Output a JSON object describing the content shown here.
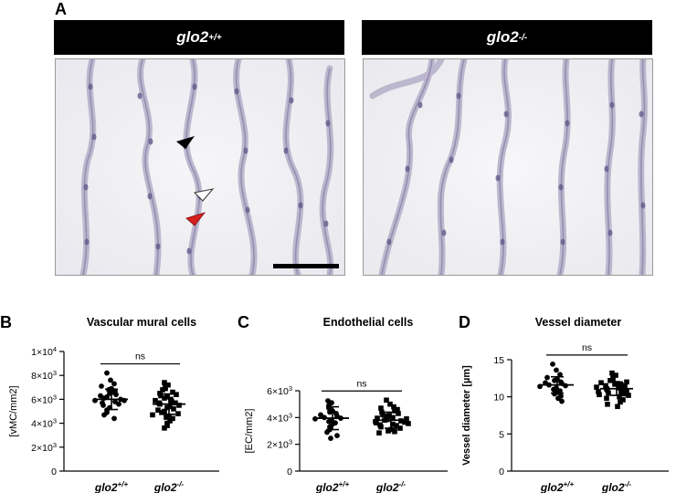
{
  "panel_a": {
    "letter": "A",
    "left_header": {
      "gene": "glo2",
      "sup": "+/+"
    },
    "right_header": {
      "gene": "glo2",
      "sup": "-/-"
    }
  },
  "chart_data": [
    {
      "panel": "B",
      "type": "scatter",
      "title": "Vascular mural cells",
      "ylabel": "[vMC/mm2]",
      "ylim": [
        0,
        10000
      ],
      "yticks": [
        0,
        2000,
        4000,
        6000,
        8000,
        10000
      ],
      "ytick_labels": [
        {
          "m": "",
          "e": "",
          "plain": "0"
        },
        {
          "m": "2×10",
          "e": "3"
        },
        {
          "m": "4×10",
          "e": "3"
        },
        {
          "m": "6×10",
          "e": "3"
        },
        {
          "m": "8×10",
          "e": "3"
        },
        {
          "m": "1×10",
          "e": "4"
        }
      ],
      "categories": [
        {
          "gene": "glo2",
          "sup": "+/+"
        },
        {
          "gene": "glo2",
          "sup": "-/-"
        }
      ],
      "significance": "ns",
      "groups": [
        {
          "marker": "circle",
          "mean": 6000,
          "sd": 850,
          "values": [
            8200,
            7600,
            7300,
            7100,
            6900,
            6800,
            6700,
            6600,
            6500,
            6400,
            6300,
            6200,
            6100,
            6000,
            5900,
            5900,
            5800,
            5700,
            5600,
            5500,
            5300,
            5100,
            4900,
            4700,
            4400
          ]
        },
        {
          "marker": "square",
          "mean": 5600,
          "sd": 850,
          "values": [
            7400,
            7200,
            7000,
            6900,
            6800,
            6600,
            6500,
            6400,
            6300,
            6200,
            6100,
            6000,
            5900,
            5800,
            5700,
            5700,
            5600,
            5500,
            5400,
            5300,
            5200,
            5100,
            5000,
            4900,
            4800,
            4700,
            4600,
            4500,
            4400,
            4200,
            4000,
            3800,
            3600
          ]
        }
      ]
    },
    {
      "panel": "C",
      "type": "scatter",
      "title": "Endothelial cells",
      "ylabel": "[EC/mm2]",
      "ylim": [
        0,
        6000
      ],
      "yticks": [
        0,
        2000,
        4000,
        6000
      ],
      "ytick_labels": [
        {
          "m": "",
          "e": "",
          "plain": "0"
        },
        {
          "m": "2×10",
          "e": "3"
        },
        {
          "m": "4×10",
          "e": "3"
        },
        {
          "m": "6×10",
          "e": "3"
        }
      ],
      "categories": [
        {
          "gene": "glo2",
          "sup": "+/+"
        },
        {
          "gene": "glo2",
          "sup": "-/-"
        }
      ],
      "significance": "ns",
      "groups": [
        {
          "marker": "circle",
          "mean": 3950,
          "sd": 850,
          "values": [
            5250,
            5100,
            4900,
            4700,
            4500,
            4400,
            4300,
            4200,
            4100,
            4000,
            3950,
            3900,
            3800,
            3700,
            3600,
            3500,
            3300,
            3100,
            2900,
            2650,
            2450
          ]
        },
        {
          "marker": "square",
          "mean": 3800,
          "sd": 600,
          "values": [
            5300,
            5000,
            4800,
            4700,
            4600,
            4500,
            4400,
            4300,
            4200,
            4150,
            4100,
            4000,
            3950,
            3900,
            3850,
            3800,
            3750,
            3700,
            3650,
            3600,
            3550,
            3500,
            3450,
            3400,
            3300,
            3200,
            3100,
            3000,
            2950,
            2850
          ]
        }
      ]
    },
    {
      "panel": "D",
      "type": "scatter",
      "title": "Vessel diameter",
      "ylabel": "Vessel diameter [µm]",
      "ylim": [
        0,
        15
      ],
      "yticks": [
        0,
        5,
        10,
        15
      ],
      "ytick_labels": [
        {
          "plain": "0"
        },
        {
          "plain": "5"
        },
        {
          "plain": "10"
        },
        {
          "plain": "15"
        }
      ],
      "categories": [
        {
          "gene": "glo2",
          "sup": "+/+"
        },
        {
          "gene": "glo2",
          "sup": "-/-"
        }
      ],
      "significance": "ns",
      "groups": [
        {
          "marker": "circle",
          "mean": 11.6,
          "sd": 1.1,
          "values": [
            14.4,
            13.6,
            13.0,
            12.6,
            12.4,
            12.2,
            12.0,
            11.9,
            11.8,
            11.6,
            11.5,
            11.4,
            11.2,
            11.0,
            10.8,
            10.6,
            10.4,
            10.1,
            9.8,
            9.4
          ]
        },
        {
          "marker": "square",
          "mean": 11.1,
          "sd": 0.9,
          "values": [
            13.2,
            12.9,
            12.6,
            12.4,
            12.2,
            12.0,
            11.9,
            11.8,
            11.7,
            11.6,
            11.5,
            11.4,
            11.3,
            11.2,
            11.1,
            11.0,
            10.9,
            10.8,
            10.7,
            10.6,
            10.5,
            10.4,
            10.3,
            10.2,
            10.0,
            9.8,
            9.6,
            9.3,
            9.0,
            8.7
          ]
        }
      ]
    }
  ]
}
